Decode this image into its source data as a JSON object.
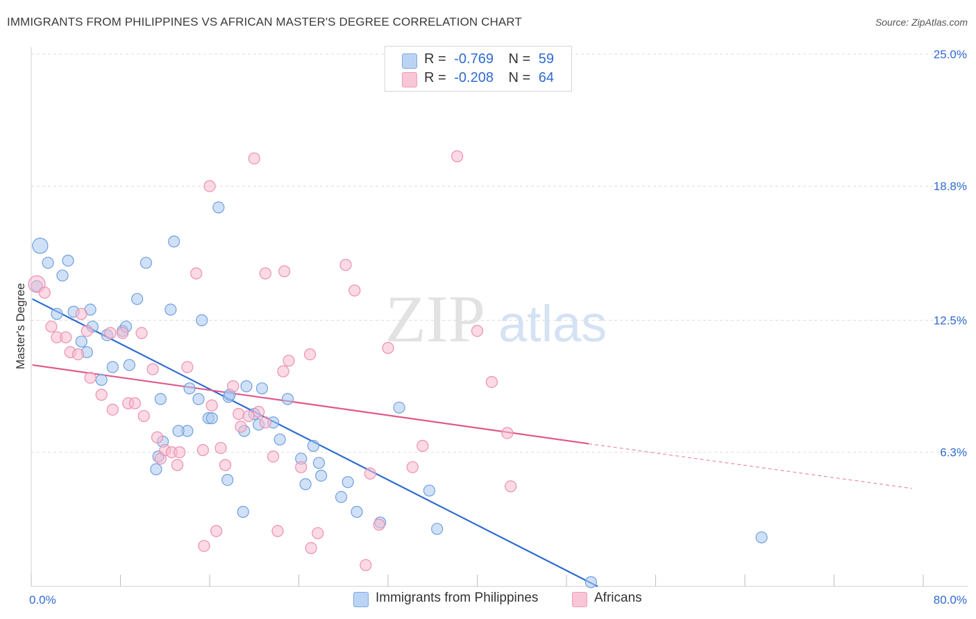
{
  "title": "IMMIGRANTS FROM PHILIPPINES VS AFRICAN MASTER'S DEGREE CORRELATION CHART",
  "source": "Source: ZipAtlas.com",
  "watermark": {
    "zip": "ZIP",
    "atlas": "atlas"
  },
  "legend_top": [
    {
      "r_label": "R =",
      "r_value": "-0.769",
      "n_label": "N =",
      "n_value": "59"
    },
    {
      "r_label": "R =",
      "r_value": "-0.208",
      "n_label": "N =",
      "n_value": "64"
    }
  ],
  "colors": {
    "blue_fill": "#a9c8f0",
    "blue_stroke": "#6e9fe0",
    "blue_line": "#2f6bd0",
    "pink_fill": "#f7bcd0",
    "pink_stroke": "#ec8fae",
    "pink_line": "#e0588a",
    "axis_text": "#2f6bd0",
    "grid": "#dcdcdc"
  },
  "chart_data": {
    "type": "scatter",
    "ylabel": "Master's Degree",
    "xlim": [
      0,
      80
    ],
    "ylim": [
      0,
      25
    ],
    "x_tick_labels": [
      "0.0%",
      "80.0%"
    ],
    "y_ticks": [
      6.3,
      12.5,
      18.8,
      25.0
    ],
    "y_tick_labels": [
      "6.3%",
      "12.5%",
      "18.8%",
      "25.0%"
    ],
    "grid": true,
    "legend_placement": "bottom",
    "series": [
      {
        "name": "Immigrants from Philippines",
        "color": "blue",
        "trend": {
          "x": [
            0.1,
            50.8
          ],
          "y": [
            13.5,
            0.0
          ]
        },
        "points": [
          [
            0.8,
            16.0
          ],
          [
            1.5,
            15.2
          ],
          [
            3.3,
            15.3
          ],
          [
            2.8,
            14.6
          ],
          [
            0.5,
            14.1
          ],
          [
            2.3,
            12.8
          ],
          [
            3.8,
            12.9
          ],
          [
            5.3,
            13.0
          ],
          [
            5.5,
            12.2
          ],
          [
            4.5,
            11.5
          ],
          [
            5.0,
            11.0
          ],
          [
            6.8,
            11.8
          ],
          [
            8.2,
            12.0
          ],
          [
            8.5,
            12.2
          ],
          [
            7.3,
            10.3
          ],
          [
            8.8,
            10.4
          ],
          [
            6.3,
            9.7
          ],
          [
            9.5,
            13.5
          ],
          [
            10.3,
            15.2
          ],
          [
            12.5,
            13.0
          ],
          [
            12.8,
            16.2
          ],
          [
            15.3,
            12.5
          ],
          [
            16.8,
            17.8
          ],
          [
            14.2,
            9.3
          ],
          [
            15.0,
            8.8
          ],
          [
            11.6,
            8.8
          ],
          [
            15.9,
            7.9
          ],
          [
            16.2,
            7.9
          ],
          [
            14.0,
            7.3
          ],
          [
            13.2,
            7.3
          ],
          [
            11.8,
            6.8
          ],
          [
            11.4,
            6.1
          ],
          [
            11.2,
            5.5
          ],
          [
            17.7,
            8.9
          ],
          [
            19.3,
            9.4
          ],
          [
            20.7,
            9.3
          ],
          [
            19.1,
            7.3
          ],
          [
            20.4,
            7.6
          ],
          [
            20.0,
            8.1
          ],
          [
            21.7,
            7.7
          ],
          [
            22.3,
            6.9
          ],
          [
            23.0,
            8.8
          ],
          [
            24.2,
            6.0
          ],
          [
            25.3,
            6.6
          ],
          [
            25.8,
            5.8
          ],
          [
            26.0,
            5.2
          ],
          [
            24.6,
            4.8
          ],
          [
            17.6,
            5.0
          ],
          [
            19.0,
            3.5
          ],
          [
            27.8,
            4.2
          ],
          [
            28.4,
            4.9
          ],
          [
            29.2,
            3.5
          ],
          [
            31.3,
            3.0
          ],
          [
            33.0,
            8.4
          ],
          [
            35.7,
            4.5
          ],
          [
            36.4,
            2.7
          ],
          [
            50.2,
            0.2
          ],
          [
            65.5,
            2.3
          ],
          [
            17.8,
            9.0
          ]
        ]
      },
      {
        "name": "Africans",
        "color": "pink",
        "trend": {
          "x": [
            0.1,
            50.0
          ],
          "y": [
            10.4,
            6.7
          ]
        },
        "trend_dashed": {
          "x": [
            50.0,
            79.0
          ],
          "y": [
            6.7,
            4.6
          ]
        },
        "points": [
          [
            0.5,
            14.2
          ],
          [
            1.2,
            13.8
          ],
          [
            1.8,
            12.2
          ],
          [
            2.3,
            11.7
          ],
          [
            3.1,
            11.7
          ],
          [
            3.5,
            11.0
          ],
          [
            4.2,
            10.9
          ],
          [
            4.5,
            12.8
          ],
          [
            5.0,
            12.0
          ],
          [
            5.3,
            9.8
          ],
          [
            6.3,
            9.0
          ],
          [
            7.1,
            11.9
          ],
          [
            7.3,
            8.3
          ],
          [
            8.2,
            11.9
          ],
          [
            8.7,
            8.6
          ],
          [
            9.3,
            8.6
          ],
          [
            9.9,
            11.9
          ],
          [
            10.1,
            8.0
          ],
          [
            10.9,
            10.2
          ],
          [
            11.3,
            7.0
          ],
          [
            11.6,
            6.0
          ],
          [
            12.0,
            6.4
          ],
          [
            12.6,
            6.3
          ],
          [
            13.3,
            6.3
          ],
          [
            13.1,
            5.7
          ],
          [
            14.0,
            10.3
          ],
          [
            14.8,
            14.7
          ],
          [
            15.4,
            6.4
          ],
          [
            16.0,
            18.8
          ],
          [
            16.2,
            8.5
          ],
          [
            17.0,
            6.5
          ],
          [
            17.4,
            5.7
          ],
          [
            18.1,
            9.4
          ],
          [
            18.6,
            8.1
          ],
          [
            18.8,
            7.5
          ],
          [
            19.5,
            8.0
          ],
          [
            20.4,
            8.2
          ],
          [
            21.0,
            7.7
          ],
          [
            21.0,
            14.7
          ],
          [
            21.7,
            6.1
          ],
          [
            22.1,
            2.6
          ],
          [
            22.6,
            10.1
          ],
          [
            23.1,
            10.6
          ],
          [
            24.2,
            5.6
          ],
          [
            25.0,
            10.9
          ],
          [
            25.1,
            1.8
          ],
          [
            25.7,
            2.5
          ],
          [
            16.6,
            2.6
          ],
          [
            15.5,
            1.9
          ],
          [
            20.0,
            20.1
          ],
          [
            28.2,
            15.1
          ],
          [
            29.0,
            13.9
          ],
          [
            30.0,
            1.0
          ],
          [
            30.4,
            5.3
          ],
          [
            31.2,
            2.9
          ],
          [
            32.0,
            11.2
          ],
          [
            34.2,
            5.6
          ],
          [
            35.1,
            6.6
          ],
          [
            38.2,
            20.2
          ],
          [
            40.0,
            12.0
          ],
          [
            41.3,
            9.6
          ],
          [
            42.7,
            7.2
          ],
          [
            43.0,
            4.7
          ],
          [
            22.7,
            14.8
          ]
        ]
      }
    ]
  },
  "legend_bottom": [
    "Immigrants from Philippines",
    "Africans"
  ]
}
